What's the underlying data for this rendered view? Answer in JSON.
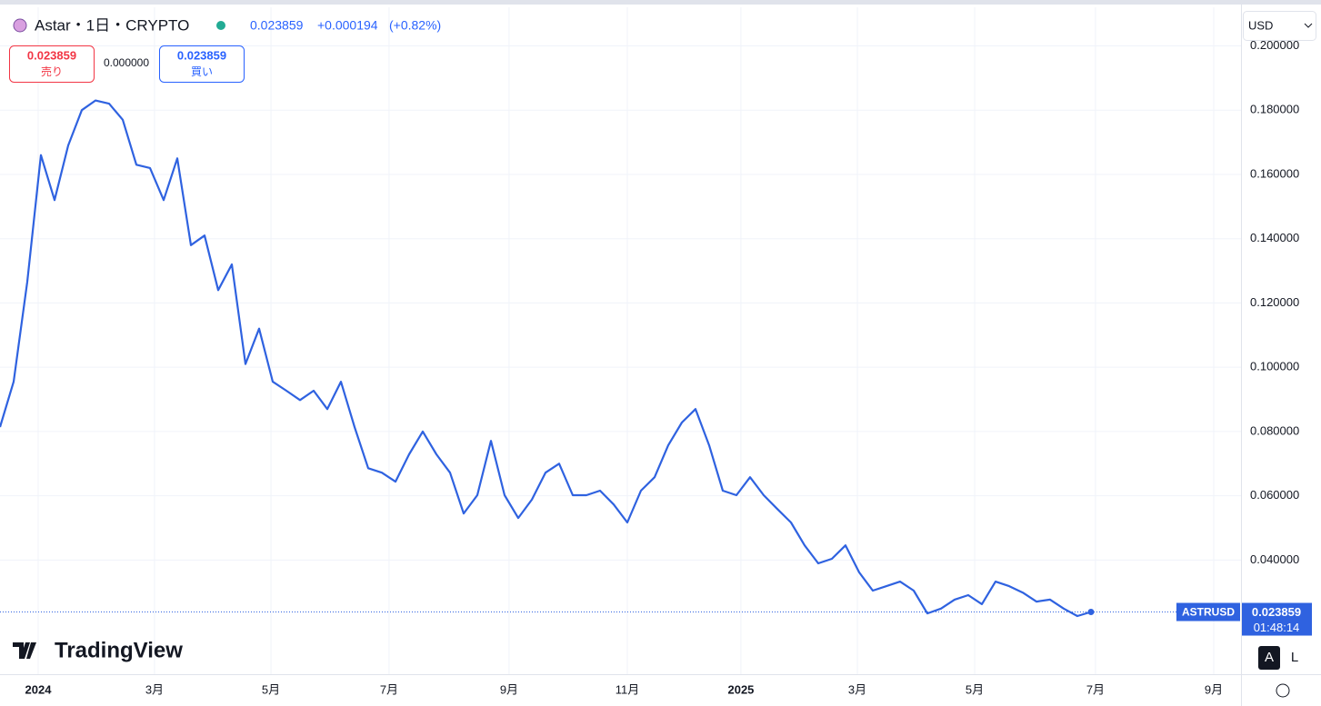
{
  "chart_data": {
    "type": "line",
    "title": "Astar・1日・CRYPTO",
    "quote": {
      "last": "0.023859",
      "change": "+0.000194",
      "change_pct": "(+0.82%)"
    },
    "series": [
      {
        "name": "ASTRUSD",
        "color": "#2f62e0",
        "values": [
          0.0814,
          0.0955,
          0.1266,
          0.166,
          0.152,
          0.169,
          0.18,
          0.183,
          0.182,
          0.177,
          0.163,
          0.162,
          0.152,
          0.165,
          0.138,
          0.141,
          0.124,
          0.132,
          0.101,
          0.112,
          0.0955,
          0.0927,
          0.0898,
          0.0927,
          0.087,
          0.0955,
          0.0814,
          0.0686,
          0.0672,
          0.0644,
          0.0729,
          0.08,
          0.0729,
          0.0672,
          0.0545,
          0.0602,
          0.0771,
          0.0602,
          0.0531,
          0.0588,
          0.0672,
          0.07,
          0.0602,
          0.0602,
          0.0616,
          0.0573,
          0.0517,
          0.0616,
          0.0658,
          0.0757,
          0.0828,
          0.087,
          0.0757,
          0.0616,
          0.0602,
          0.0658,
          0.0602,
          0.0559,
          0.0517,
          0.0446,
          0.039,
          0.0404,
          0.0446,
          0.0362,
          0.0305,
          0.0319,
          0.0333,
          0.0305,
          0.0234,
          0.0249,
          0.0277,
          0.0291,
          0.0263,
          0.0333,
          0.0319,
          0.0299,
          0.0271,
          0.0277,
          0.0249,
          0.0226,
          0.023859
        ]
      }
    ],
    "last_price": 0.023859,
    "last_price_label": "0.023859",
    "countdown": "01:48:14",
    "xlim": [
      0,
      91
    ],
    "xticks": [
      {
        "value": 2.8,
        "label": "2024"
      },
      {
        "value": 11.33,
        "label": "3月"
      },
      {
        "value": 19.87,
        "label": "5月"
      },
      {
        "value": 28.53,
        "label": "7月"
      },
      {
        "value": 37.33,
        "label": "9月"
      },
      {
        "value": 46,
        "label": "11月"
      },
      {
        "value": 54.33,
        "label": "2025"
      },
      {
        "value": 62.87,
        "label": "3月"
      },
      {
        "value": 71.47,
        "label": "5月"
      },
      {
        "value": 80.33,
        "label": "7月"
      },
      {
        "value": 89,
        "label": "9月"
      }
    ],
    "ylim": [
      0.0045,
      0.212
    ],
    "yticks": [
      {
        "value": 0.04,
        "label": "0.040000"
      },
      {
        "value": 0.06,
        "label": "0.060000"
      },
      {
        "value": 0.08,
        "label": "0.080000"
      },
      {
        "value": 0.1,
        "label": "0.100000"
      },
      {
        "value": 0.12,
        "label": "0.120000"
      },
      {
        "value": 0.14,
        "label": "0.140000"
      },
      {
        "value": 0.16,
        "label": "0.160000"
      },
      {
        "value": 0.18,
        "label": "0.180000"
      },
      {
        "value": 0.2,
        "label": "0.200000"
      }
    ],
    "grid": true
  },
  "ui": {
    "sell_price": "0.023859",
    "sell": "売り",
    "spread": "0.000000",
    "buy_price": "0.023859",
    "buy": "買い",
    "currency": "USD",
    "logo": "TradingView",
    "btn_auto": "A",
    "btn_log": "L"
  }
}
